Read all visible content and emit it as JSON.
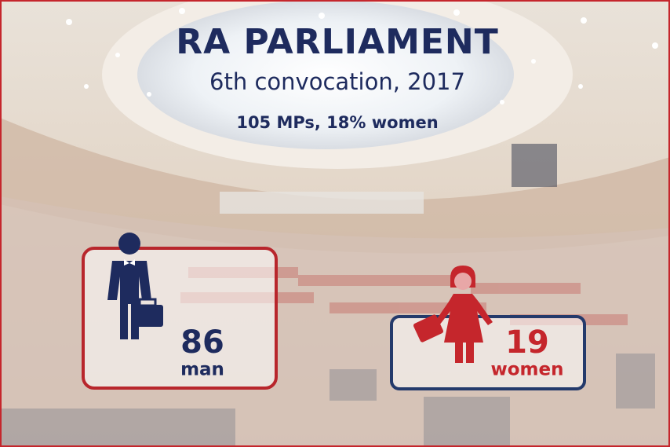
{
  "title": "RA PARLIAMENT",
  "subtitle": "6th convocation, 2017",
  "summary": "105 MPs, 18% women",
  "men": {
    "count": 86,
    "label": "man"
  },
  "women": {
    "count": 19,
    "label": "women"
  }
}
